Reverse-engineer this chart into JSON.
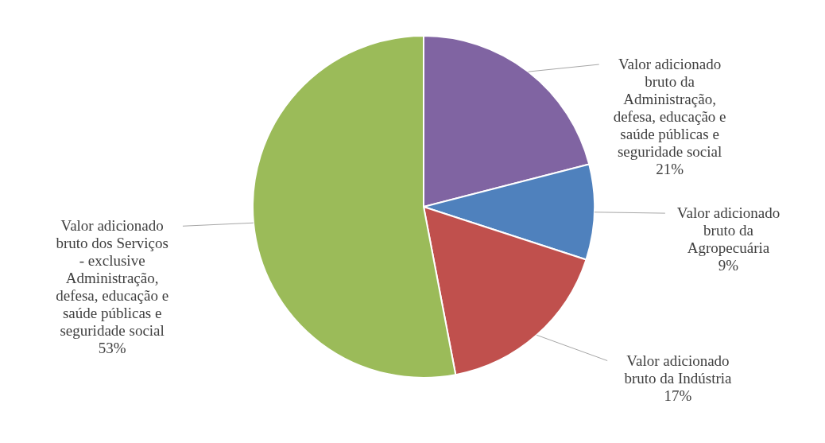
{
  "chart_data": {
    "type": "pie",
    "categories": [
      "Valor adicionado bruto da Administração, defesa, educação e saúde públicas e seguridade social",
      "Valor adicionado bruto da Agropecuária",
      "Valor adicionado bruto da Indústria",
      "Valor adicionado bruto dos Serviços - exclusive Administração, defesa, educação e saúde públicas e seguridade social"
    ],
    "values": [
      21,
      9,
      17,
      53
    ],
    "colors": [
      "#8064a2",
      "#4f81bd",
      "#c0504d",
      "#9bbb59"
    ],
    "value_labels": [
      "21%",
      "9%",
      "17%",
      "53%"
    ]
  }
}
